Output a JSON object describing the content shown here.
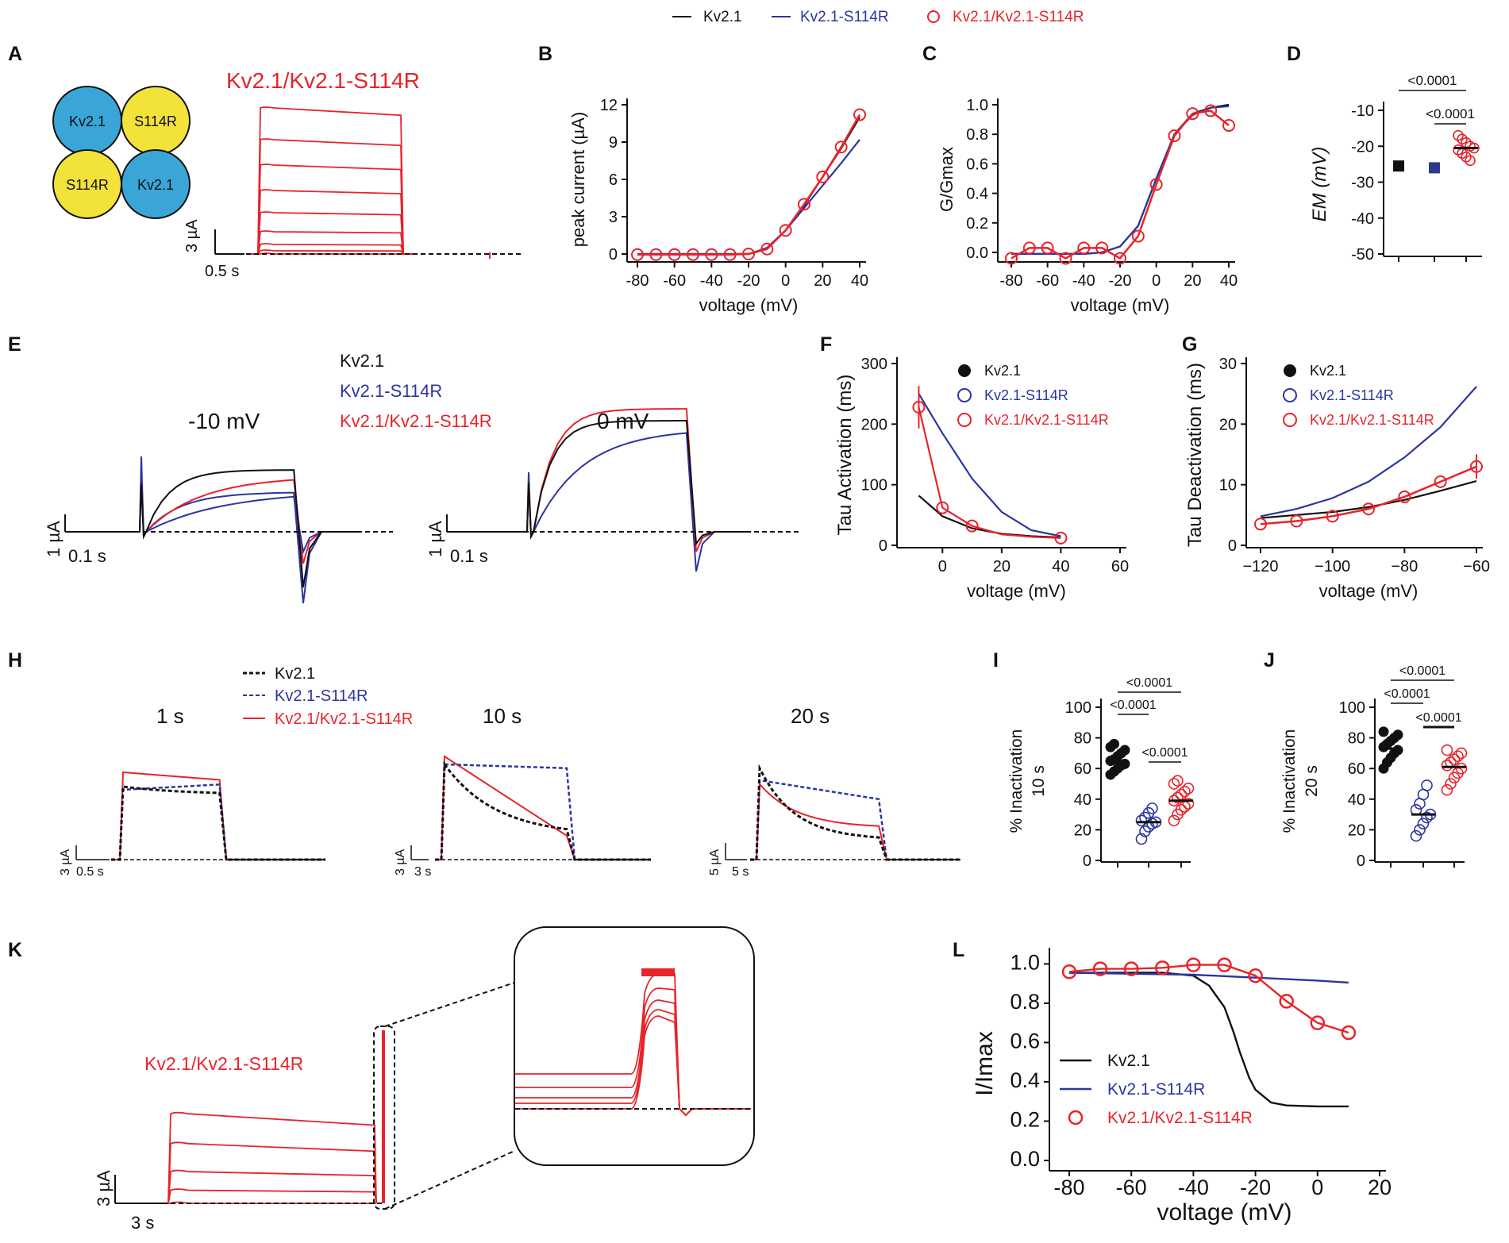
{
  "colors": {
    "kv21": "#111111",
    "mut": "#2b35a0",
    "het": "#e8232b"
  },
  "legend_top": [
    "Kv2.1",
    "Kv2.1-S114R",
    "Kv2.1/Kv2.1-S114R"
  ],
  "panel_letters": [
    "A",
    "B",
    "C",
    "D",
    "E",
    "F",
    "G",
    "H",
    "I",
    "J",
    "K",
    "L"
  ],
  "panel_a": {
    "title": "Kv2.1/Kv2.1-S114R",
    "subunits": [
      "Kv2.1",
      "S114R",
      "S114R",
      "Kv2.1"
    ],
    "scale_y": "3 µA",
    "scale_x": "0.5 s",
    "trace_levels": [
      0.92,
      0.72,
      0.56,
      0.4,
      0.26,
      0.14,
      0.06,
      0.02,
      0.0
    ]
  },
  "panel_e": {
    "legend": [
      "Kv2.1",
      "Kv2.1-S114R",
      "Kv2.1/Kv2.1-S114R"
    ],
    "labels": [
      "-10 mV",
      "0 mV"
    ],
    "scale_y": "1 µA",
    "scale_x": "0.1 s"
  },
  "panel_h": {
    "legend": [
      "Kv2.1",
      "Kv2.1-S114R",
      "Kv2.1/Kv2.1-S114R"
    ],
    "labels": [
      "1 s",
      "10 s",
      "20 s"
    ],
    "scale_y": [
      "3 µA",
      "3 µA",
      "5 µA"
    ],
    "scale_x": [
      "0.5 s",
      "3 s",
      "5 s"
    ]
  },
  "panel_k": {
    "title": "Kv2.1/Kv2.1-S114R",
    "scale_y": "3 µA",
    "scale_x": "3 s",
    "trace_levels": [
      0.48,
      0.32,
      0.17,
      0.07,
      0.0
    ]
  },
  "chart_data": [
    {
      "id": "B",
      "type": "line",
      "xlabel": "voltage (mV)",
      "ylabel": "peak current (µA)",
      "xlim": [
        -80,
        40
      ],
      "ylim": [
        0,
        12
      ],
      "xticks": [
        -80,
        -60,
        -40,
        -20,
        0,
        20,
        40
      ],
      "yticks": [
        0,
        3,
        6,
        9,
        12
      ],
      "x": [
        -80,
        -70,
        -60,
        -50,
        -40,
        -30,
        -20,
        -10,
        0,
        10,
        20,
        30,
        40
      ],
      "series": [
        {
          "name": "Kv2.1",
          "values": [
            0,
            0,
            0,
            0,
            0,
            0,
            0,
            0.4,
            1.9,
            3.9,
            6.2,
            8.5,
            11.0
          ]
        },
        {
          "name": "Kv2.1-S114R",
          "values": [
            0,
            0,
            0,
            0,
            0,
            0,
            0,
            0.5,
            1.9,
            3.7,
            5.5,
            7.3,
            9.2
          ]
        },
        {
          "name": "Kv2.1/Kv2.1-S114R",
          "values": [
            -0.05,
            -0.05,
            -0.05,
            -0.05,
            -0.05,
            -0.05,
            0,
            0.4,
            1.9,
            4.0,
            6.2,
            8.6,
            11.2
          ],
          "markers": true
        }
      ]
    },
    {
      "id": "C",
      "type": "line",
      "xlabel": "voltage (mV)",
      "ylabel": "G/Gmax",
      "xlim": [
        -80,
        40
      ],
      "ylim": [
        0,
        1
      ],
      "xticks": [
        -80,
        -60,
        -40,
        -20,
        0,
        20,
        40
      ],
      "yticks": [
        0.0,
        0.2,
        0.4,
        0.6,
        0.8,
        1.0
      ],
      "x": [
        -80,
        -70,
        -60,
        -50,
        -40,
        -30,
        -20,
        -10,
        0,
        10,
        20,
        30,
        40
      ],
      "series": [
        {
          "name": "Kv2.1",
          "values": [
            -0.01,
            -0.01,
            -0.01,
            -0.01,
            -0.01,
            0.0,
            0.04,
            0.18,
            0.5,
            0.8,
            0.94,
            0.98,
            1.0
          ]
        },
        {
          "name": "Kv2.1-S114R",
          "values": [
            -0.01,
            -0.01,
            -0.01,
            -0.01,
            -0.01,
            0.0,
            0.04,
            0.18,
            0.5,
            0.8,
            0.93,
            0.98,
            0.99
          ]
        },
        {
          "name": "Kv2.1/Kv2.1-S114R",
          "values": [
            -0.04,
            0.03,
            0.03,
            -0.04,
            0.03,
            0.03,
            -0.04,
            0.11,
            0.46,
            0.79,
            0.94,
            0.96,
            0.86
          ],
          "markers": true
        }
      ]
    },
    {
      "id": "D",
      "type": "scatter",
      "ylabel": "E_M (mV)",
      "ylim": [
        -50,
        -10
      ],
      "yticks": [
        -10,
        -20,
        -30,
        -40,
        -50
      ],
      "groups": [
        {
          "name": "Kv2.1",
          "mean": -25.5
        },
        {
          "name": "Kv2.1-S114R",
          "mean": -26
        },
        {
          "name": "Kv2.1/Kv2.1-S114R",
          "mean": -20.5,
          "points": [
            -17,
            -18,
            -19,
            -20,
            -20.5,
            -21,
            -22,
            -23,
            -24
          ]
        }
      ],
      "significance": [
        "<0.0001",
        "<0.0001"
      ]
    },
    {
      "id": "F",
      "type": "line",
      "xlabel": "voltage (mV)",
      "ylabel": "Tau Activation (ms)",
      "xlim": [
        -10,
        60
      ],
      "ylim": [
        0,
        300
      ],
      "xticks": [
        0,
        20,
        40,
        60
      ],
      "yticks": [
        0,
        100,
        200,
        300
      ],
      "series": [
        {
          "name": "Kv2.1",
          "x": [
            -8,
            0,
            10,
            20,
            30,
            40
          ],
          "values": [
            82,
            48,
            28,
            19,
            15,
            13
          ]
        },
        {
          "name": "Kv2.1-S114R",
          "x": [
            -8,
            0,
            10,
            20,
            30,
            40
          ],
          "values": [
            250,
            185,
            110,
            55,
            25,
            15
          ]
        },
        {
          "name": "Kv2.1/Kv2.1-S114R",
          "x": [
            -8,
            0,
            10,
            20,
            30,
            40
          ],
          "values": [
            228,
            62,
            32,
            18,
            14,
            12
          ],
          "markers": [
            -8,
            0,
            10,
            40
          ],
          "error_at_first": 35
        }
      ]
    },
    {
      "id": "G",
      "type": "line",
      "xlabel": "voltage (mV)",
      "ylabel": "Tau Deactivation (ms)",
      "xlim": [
        -120,
        -60
      ],
      "ylim": [
        0,
        30
      ],
      "xticks": [
        -120,
        -100,
        -80,
        -60
      ],
      "yticks": [
        0,
        10,
        20,
        30
      ],
      "x": [
        -120,
        -110,
        -100,
        -90,
        -80,
        -70,
        -60
      ],
      "series": [
        {
          "name": "Kv2.1",
          "values": [
            4.5,
            5.0,
            5.5,
            6.3,
            7.5,
            9.0,
            10.6
          ]
        },
        {
          "name": "Kv2.1-S114R",
          "values": [
            4.8,
            6.0,
            7.8,
            10.5,
            14.5,
            19.5,
            26.2
          ]
        },
        {
          "name": "Kv2.1/Kv2.1-S114R",
          "values": [
            3.5,
            4.0,
            4.8,
            6.0,
            8.0,
            10.5,
            13.0
          ],
          "markers": true,
          "error_at_last": 2
        }
      ]
    },
    {
      "id": "I",
      "type": "scatter",
      "ylabel": "% Inactivation 10 s",
      "ylim": [
        0,
        100
      ],
      "yticks": [
        0,
        20,
        40,
        60,
        80,
        100
      ],
      "groups": [
        {
          "name": "Kv2.1",
          "mean": 64,
          "points": [
            56,
            58,
            60,
            62,
            63,
            65,
            66,
            68,
            70,
            72,
            74,
            76
          ]
        },
        {
          "name": "Kv2.1-S114R",
          "mean": 25,
          "points": [
            14,
            19,
            22,
            24,
            25,
            26,
            28,
            31,
            34
          ]
        },
        {
          "name": "Kv2.1/Kv2.1-S114R",
          "mean": 39,
          "points": [
            26,
            30,
            33,
            35,
            37,
            39,
            41,
            43,
            45,
            47,
            50,
            52
          ]
        }
      ],
      "significance": [
        "<0.0001",
        "<0.0001",
        "<0.0001"
      ]
    },
    {
      "id": "J",
      "type": "scatter",
      "ylabel": "% Inactivation 20 s",
      "ylim": [
        0,
        100
      ],
      "yticks": [
        0,
        20,
        40,
        60,
        80,
        100
      ],
      "groups": [
        {
          "name": "Kv2.1",
          "mean": 73,
          "points": [
            60,
            64,
            67,
            70,
            72,
            74,
            76,
            78,
            80,
            82,
            84
          ]
        },
        {
          "name": "Kv2.1-S114R",
          "mean": 30,
          "points": [
            16,
            20,
            24,
            28,
            30,
            33,
            37,
            43,
            49
          ]
        },
        {
          "name": "Kv2.1/Kv2.1-S114R",
          "mean": 61,
          "points": [
            46,
            50,
            54,
            57,
            60,
            62,
            64,
            66,
            68,
            70,
            72
          ]
        }
      ],
      "significance": [
        "<0.0001",
        "<0.0001",
        "<0.0001"
      ]
    },
    {
      "id": "L",
      "type": "line",
      "xlabel": "voltage (mV)",
      "ylabel": "I/Imax",
      "xlim": [
        -80,
        20
      ],
      "ylim": [
        0,
        1.05
      ],
      "xticks": [
        -80,
        -60,
        -40,
        -20,
        0,
        20
      ],
      "yticks": [
        0.0,
        0.2,
        0.4,
        0.6,
        0.8,
        1.0
      ],
      "series": [
        {
          "name": "Kv2.1",
          "x": [
            -80,
            -50,
            -40,
            -35,
            -30,
            -27,
            -25,
            -22,
            -20,
            -15,
            -10,
            0,
            10
          ],
          "values": [
            0.955,
            0.955,
            0.94,
            0.89,
            0.78,
            0.65,
            0.55,
            0.42,
            0.36,
            0.295,
            0.28,
            0.275,
            0.275
          ]
        },
        {
          "name": "Kv2.1-S114R",
          "x": [
            -80,
            -40,
            -20,
            0,
            10
          ],
          "values": [
            0.955,
            0.945,
            0.93,
            0.915,
            0.905
          ]
        },
        {
          "name": "Kv2.1/Kv2.1-S114R",
          "x": [
            -80,
            -70,
            -60,
            -50,
            -40,
            -30,
            -20,
            -10,
            0,
            10
          ],
          "values": [
            0.96,
            0.975,
            0.975,
            0.98,
            0.995,
            0.995,
            0.94,
            0.81,
            0.7,
            0.65
          ],
          "markers": true
        }
      ],
      "legend": [
        "Kv2.1",
        "Kv2.1-S114R",
        "Kv2.1/Kv2.1-S114R"
      ]
    }
  ]
}
